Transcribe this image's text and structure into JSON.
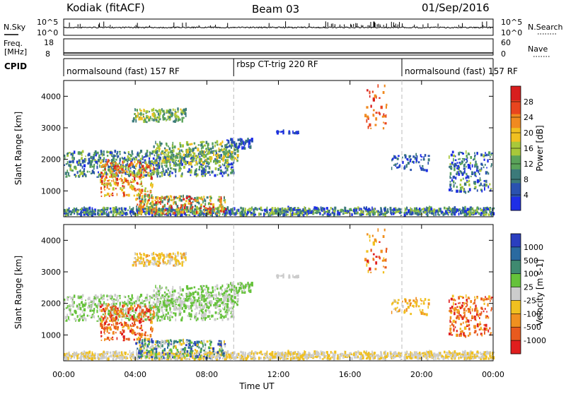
{
  "header": {
    "station": "Kodiak (fitACF)",
    "beam": "Beam 03",
    "date": "01/Sep/2016"
  },
  "panel_labels": {
    "nsky": "N.Sky",
    "nsky_ticks": [
      "10^5",
      "10^0"
    ],
    "nsearch": "N.Search",
    "nsearch_ticks": [
      "10^5",
      "10^0"
    ],
    "freq": "Freq.",
    "freq_unit": "[MHz]",
    "freq_ticks": [
      "18",
      "8"
    ],
    "nave": "Nave",
    "nave_ticks": [
      "60",
      "0"
    ],
    "cpid": "CPID"
  },
  "cpid_segments": [
    {
      "label": "normalsound (fast) 157 RF",
      "start": 0.0,
      "end": 9.5
    },
    {
      "label": "rbsp CT-trig 220 RF",
      "start": 9.5,
      "end": 18.9
    },
    {
      "label": "normalsound (fast) 157 RF",
      "start": 18.9,
      "end": 24.0
    }
  ],
  "axes": {
    "xlabel": "Time UT",
    "x_tick_labels": [
      "00:00",
      "04:00",
      "08:00",
      "12:00",
      "16:00",
      "20:00",
      "00:00"
    ],
    "ylabel": "Slant Range [km]",
    "y_tick_labels": [
      "1000",
      "2000",
      "3000",
      "4000"
    ]
  },
  "colorbars": {
    "power": {
      "label": "Power [dB]",
      "ticks": [
        "4",
        "8",
        "12",
        "16",
        "20",
        "24",
        "28"
      ],
      "colors": [
        "#1e2ee6",
        "#2a52b0",
        "#3b7a7a",
        "#5aa35a",
        "#a8c83a",
        "#f0c020",
        "#f08a20",
        "#e8451e",
        "#d81e1e"
      ]
    },
    "velocity": {
      "label": "Velocity [m s-1]",
      "ticks": [
        "1000",
        "500",
        "100",
        "25",
        "-25",
        "-100",
        "-500",
        "-1000"
      ],
      "colors": [
        "#2a3ebf",
        "#2a6aa0",
        "#3f8a70",
        "#65c23a",
        "#cccccc",
        "#f0c020",
        "#f09020",
        "#e85a1e",
        "#e01e1e"
      ]
    }
  },
  "chart_data": {
    "type": "heatmap",
    "x_range_hours": [
      0,
      24
    ],
    "y_range_km": [
      180,
      4500
    ],
    "x_unit": "UT hours",
    "y_unit": "km",
    "grid": false
  }
}
